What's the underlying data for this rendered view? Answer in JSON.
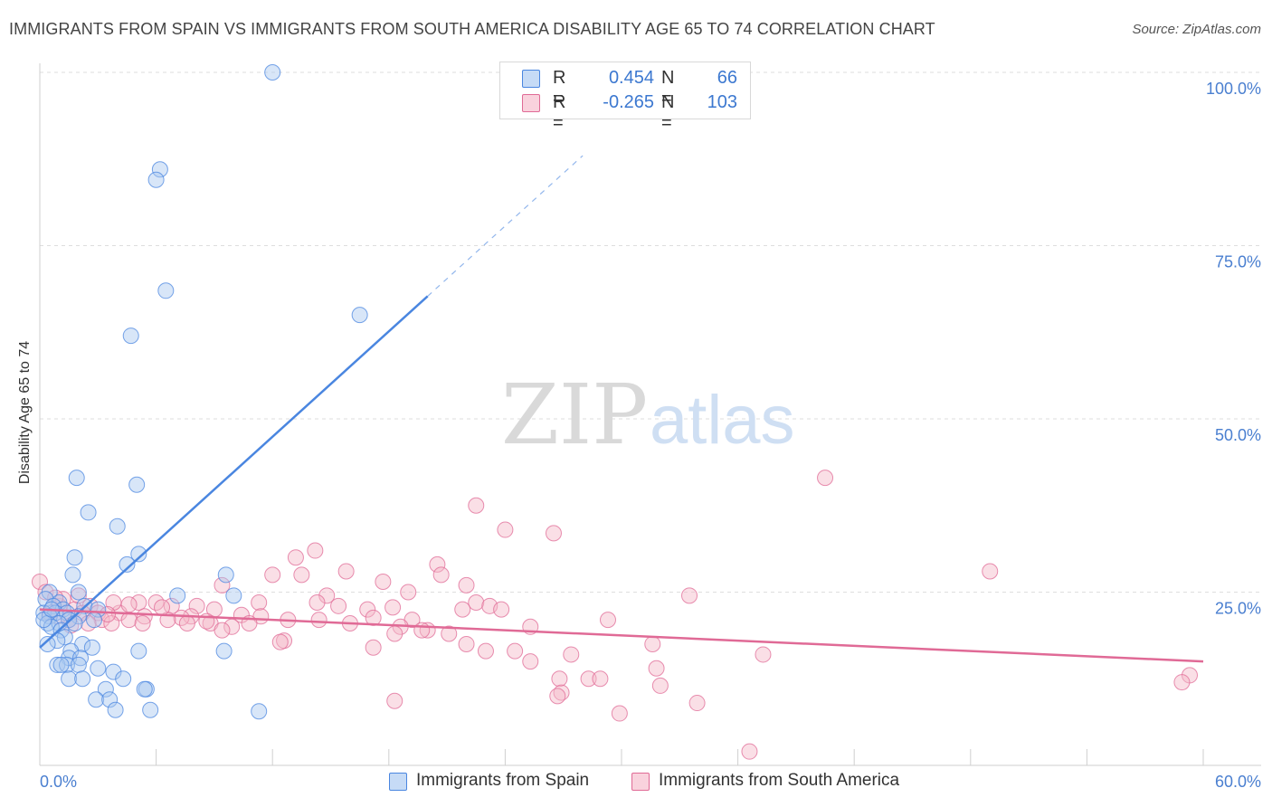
{
  "header": {
    "title": "IMMIGRANTS FROM SPAIN VS IMMIGRANTS FROM SOUTH AMERICA DISABILITY AGE 65 TO 74 CORRELATION CHART",
    "source": "Source: ZipAtlas.com"
  },
  "watermark": {
    "zip": "ZIP",
    "atlas": "atlas"
  },
  "stats": [
    {
      "r_label": "R =",
      "r_value": "0.454",
      "n_label": "N =",
      "n_value": "66",
      "color": "#a8c8f0"
    },
    {
      "r_label": "R =",
      "r_value": "-0.265",
      "n_label": "N =",
      "n_value": "103",
      "color": "#f5b8c8"
    }
  ],
  "legend": [
    {
      "label": "Immigrants from Spain",
      "color": "#a8c8f0"
    },
    {
      "label": "Immigrants from South America",
      "color": "#f5b8c8"
    }
  ],
  "chart_data": {
    "type": "scatter",
    "title": "IMMIGRANTS FROM SPAIN VS IMMIGRANTS FROM SOUTH AMERICA DISABILITY AGE 65 TO 74 CORRELATION CHART",
    "xlabel": "",
    "ylabel": "Disability Age 65 to 74",
    "xlim": [
      0,
      60
    ],
    "ylim": [
      0,
      100
    ],
    "x_tick_labels": [
      "0.0%",
      "60.0%"
    ],
    "y_ticks": [
      25,
      50,
      75,
      100
    ],
    "y_tick_labels": [
      "25.0%",
      "50.0%",
      "75.0%",
      "100.0%"
    ],
    "series": [
      {
        "name": "Immigrants from Spain",
        "color": "#4a86e0",
        "fill": "#a8c8f0",
        "trend": {
          "x0": 0,
          "y0": 17.0,
          "x1": 20,
          "y1": 67.7,
          "dash_to_x": 28
        },
        "points": [
          [
            12,
            100
          ],
          [
            6.2,
            86
          ],
          [
            6.0,
            84.5
          ],
          [
            6.5,
            68.5
          ],
          [
            16.5,
            65
          ],
          [
            4.7,
            62
          ],
          [
            1.9,
            41.5
          ],
          [
            5.0,
            40.5
          ],
          [
            2.5,
            36.5
          ],
          [
            4.0,
            34.5
          ],
          [
            5.1,
            30.5
          ],
          [
            1.8,
            30
          ],
          [
            4.5,
            29
          ],
          [
            1.7,
            27.5
          ],
          [
            9.6,
            27.5
          ],
          [
            0.5,
            25
          ],
          [
            2.0,
            25
          ],
          [
            10.0,
            24.5
          ],
          [
            7.1,
            24.5
          ],
          [
            0.3,
            24
          ],
          [
            1.0,
            23.5
          ],
          [
            0.7,
            23
          ],
          [
            1.2,
            22.5
          ],
          [
            2.3,
            23
          ],
          [
            3.0,
            22.5
          ],
          [
            0.2,
            22
          ],
          [
            0.8,
            22
          ],
          [
            1.4,
            22
          ],
          [
            0.5,
            21.5
          ],
          [
            2.0,
            21.5
          ],
          [
            1.5,
            21
          ],
          [
            2.8,
            21
          ],
          [
            0.4,
            20.5
          ],
          [
            1.0,
            20.5
          ],
          [
            1.8,
            20.5
          ],
          [
            0.6,
            20
          ],
          [
            1.1,
            19.5
          ],
          [
            1.3,
            18.5
          ],
          [
            0.9,
            18
          ],
          [
            0.4,
            17.5
          ],
          [
            2.2,
            17.5
          ],
          [
            2.7,
            17
          ],
          [
            1.6,
            16.5
          ],
          [
            5.1,
            16.5
          ],
          [
            9.5,
            16.5
          ],
          [
            1.5,
            15.5
          ],
          [
            2.1,
            15.5
          ],
          [
            0.9,
            14.5
          ],
          [
            1.4,
            14.5
          ],
          [
            1.1,
            14.5
          ],
          [
            2.0,
            14.5
          ],
          [
            3.0,
            14
          ],
          [
            3.8,
            13.5
          ],
          [
            1.5,
            12.5
          ],
          [
            2.2,
            12.5
          ],
          [
            4.3,
            12.5
          ],
          [
            3.4,
            11
          ],
          [
            5.5,
            11
          ],
          [
            5.4,
            11
          ],
          [
            2.9,
            9.5
          ],
          [
            3.6,
            9.5
          ],
          [
            5.7,
            8
          ],
          [
            3.9,
            8
          ],
          [
            11.3,
            7.8
          ],
          [
            0.2,
            21
          ],
          [
            0.6,
            22.5
          ]
        ]
      },
      {
        "name": "Immigrants from South America",
        "color": "#e06a96",
        "fill": "#f5b8c8",
        "trend": {
          "x0": 0,
          "y0": 22.5,
          "x1": 60,
          "y1": 15.0
        },
        "points": [
          [
            40.5,
            41.5
          ],
          [
            22.5,
            37.5
          ],
          [
            24,
            34
          ],
          [
            26.5,
            33.5
          ],
          [
            14.2,
            31
          ],
          [
            13.2,
            30
          ],
          [
            20.5,
            29
          ],
          [
            15.8,
            28
          ],
          [
            49,
            28
          ],
          [
            12,
            27.5
          ],
          [
            13.5,
            27.5
          ],
          [
            20.7,
            27.5
          ],
          [
            17.7,
            26.5
          ],
          [
            9.4,
            26
          ],
          [
            22,
            26
          ],
          [
            19,
            25
          ],
          [
            33.5,
            24.5
          ],
          [
            14.8,
            24.5
          ],
          [
            22.5,
            23.5
          ],
          [
            14.3,
            23.5
          ],
          [
            15.4,
            23
          ],
          [
            23.2,
            23
          ],
          [
            11.3,
            23.5
          ],
          [
            5.1,
            23.5
          ],
          [
            6.0,
            23.5
          ],
          [
            6.8,
            23
          ],
          [
            1.0,
            23
          ],
          [
            1.8,
            22.5
          ],
          [
            2.6,
            23
          ],
          [
            8.1,
            23
          ],
          [
            9.0,
            22.5
          ],
          [
            21.8,
            22.5
          ],
          [
            16.9,
            22.5
          ],
          [
            18.2,
            22.8
          ],
          [
            23.8,
            22.5
          ],
          [
            4.1,
            22
          ],
          [
            3.0,
            22
          ],
          [
            0.5,
            22
          ],
          [
            2.2,
            22
          ],
          [
            5.4,
            21.5
          ],
          [
            7.8,
            21.5
          ],
          [
            10.4,
            21.7
          ],
          [
            11.4,
            21.5
          ],
          [
            0.9,
            21.5
          ],
          [
            17.2,
            21.3
          ],
          [
            7.3,
            21.3
          ],
          [
            1.5,
            21
          ],
          [
            3.2,
            21
          ],
          [
            4.6,
            21
          ],
          [
            6.6,
            21
          ],
          [
            12.8,
            21
          ],
          [
            14.4,
            21
          ],
          [
            19.2,
            21
          ],
          [
            29.3,
            21
          ],
          [
            3.7,
            20.5
          ],
          [
            5.3,
            20.5
          ],
          [
            7.6,
            20.5
          ],
          [
            8.8,
            20.5
          ],
          [
            10.8,
            20.5
          ],
          [
            16.0,
            20.5
          ],
          [
            2.5,
            20.5
          ],
          [
            9.9,
            20
          ],
          [
            18.6,
            20
          ],
          [
            20.0,
            19.5
          ],
          [
            25.3,
            20
          ],
          [
            19.7,
            19.5
          ],
          [
            21.1,
            19
          ],
          [
            9.4,
            19.5
          ],
          [
            18.3,
            19
          ],
          [
            12.6,
            18
          ],
          [
            12.4,
            17.8
          ],
          [
            22.0,
            17.5
          ],
          [
            31.6,
            17.5
          ],
          [
            17.2,
            17
          ],
          [
            23.0,
            16.5
          ],
          [
            24.5,
            16.5
          ],
          [
            27.4,
            16
          ],
          [
            25.3,
            15
          ],
          [
            37.3,
            16
          ],
          [
            31.8,
            14
          ],
          [
            26.8,
            12.5
          ],
          [
            28.3,
            12.5
          ],
          [
            28.9,
            12.5
          ],
          [
            32.0,
            11.5
          ],
          [
            59.3,
            13
          ],
          [
            58.9,
            12
          ],
          [
            26.9,
            10.5
          ],
          [
            26.7,
            10
          ],
          [
            18.3,
            9.3
          ],
          [
            33.9,
            9
          ],
          [
            29.9,
            7.5
          ],
          [
            36.6,
            2
          ],
          [
            0.0,
            26.5
          ],
          [
            0.3,
            25
          ],
          [
            1.2,
            24
          ],
          [
            2.0,
            24.5
          ],
          [
            0.8,
            24.2
          ],
          [
            3.8,
            23.5
          ],
          [
            4.6,
            23.2
          ],
          [
            6.3,
            22.8
          ],
          [
            8.6,
            20.8
          ],
          [
            1.6,
            20.2
          ],
          [
            3.5,
            21.8
          ]
        ]
      }
    ]
  }
}
